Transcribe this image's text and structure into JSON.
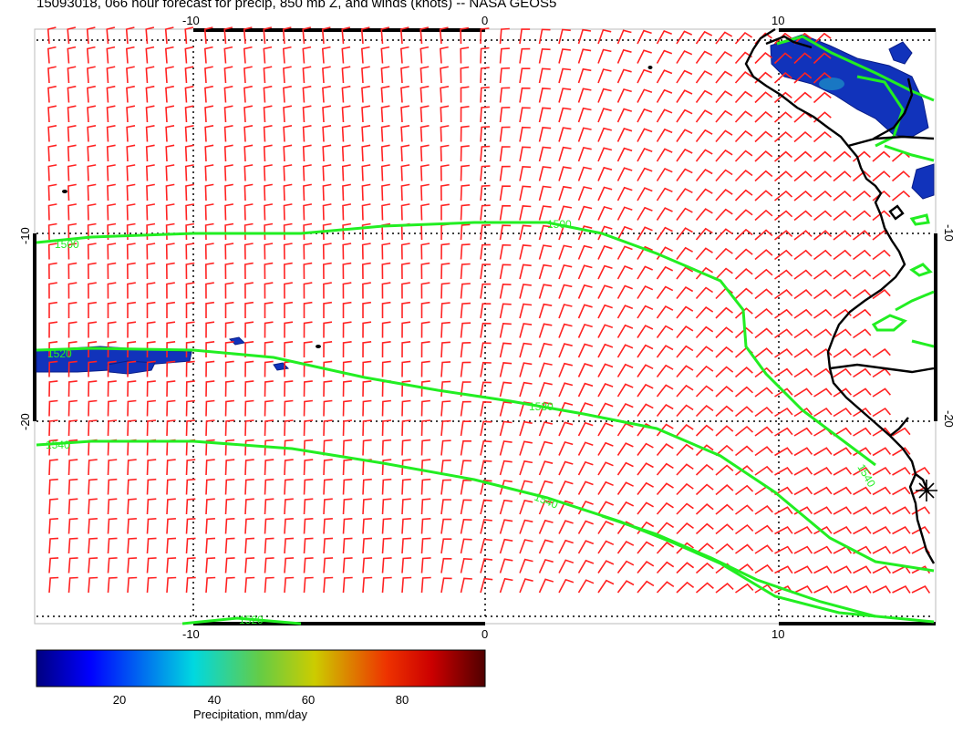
{
  "title": "15093018, 066 hour forecast for precip, 850 mb Z, and winds (knots) -- NASA GEOS5",
  "map": {
    "x_ticks": [
      "-10",
      "0",
      "10"
    ],
    "y_ticks": [
      "-10",
      "-20"
    ],
    "contour_labels": [
      "1500",
      "1520",
      "1530",
      "1540",
      "1540",
      "1540",
      "1520"
    ],
    "colors": {
      "contour": "#22ee22",
      "barbs": "#ff2222",
      "coast": "#000000",
      "precip": "#1133bb"
    }
  },
  "colorbar": {
    "ticks": [
      "20",
      "40",
      "60",
      "80"
    ],
    "label": "Precipitation, mm/day",
    "range": [
      2,
      97
    ]
  }
}
